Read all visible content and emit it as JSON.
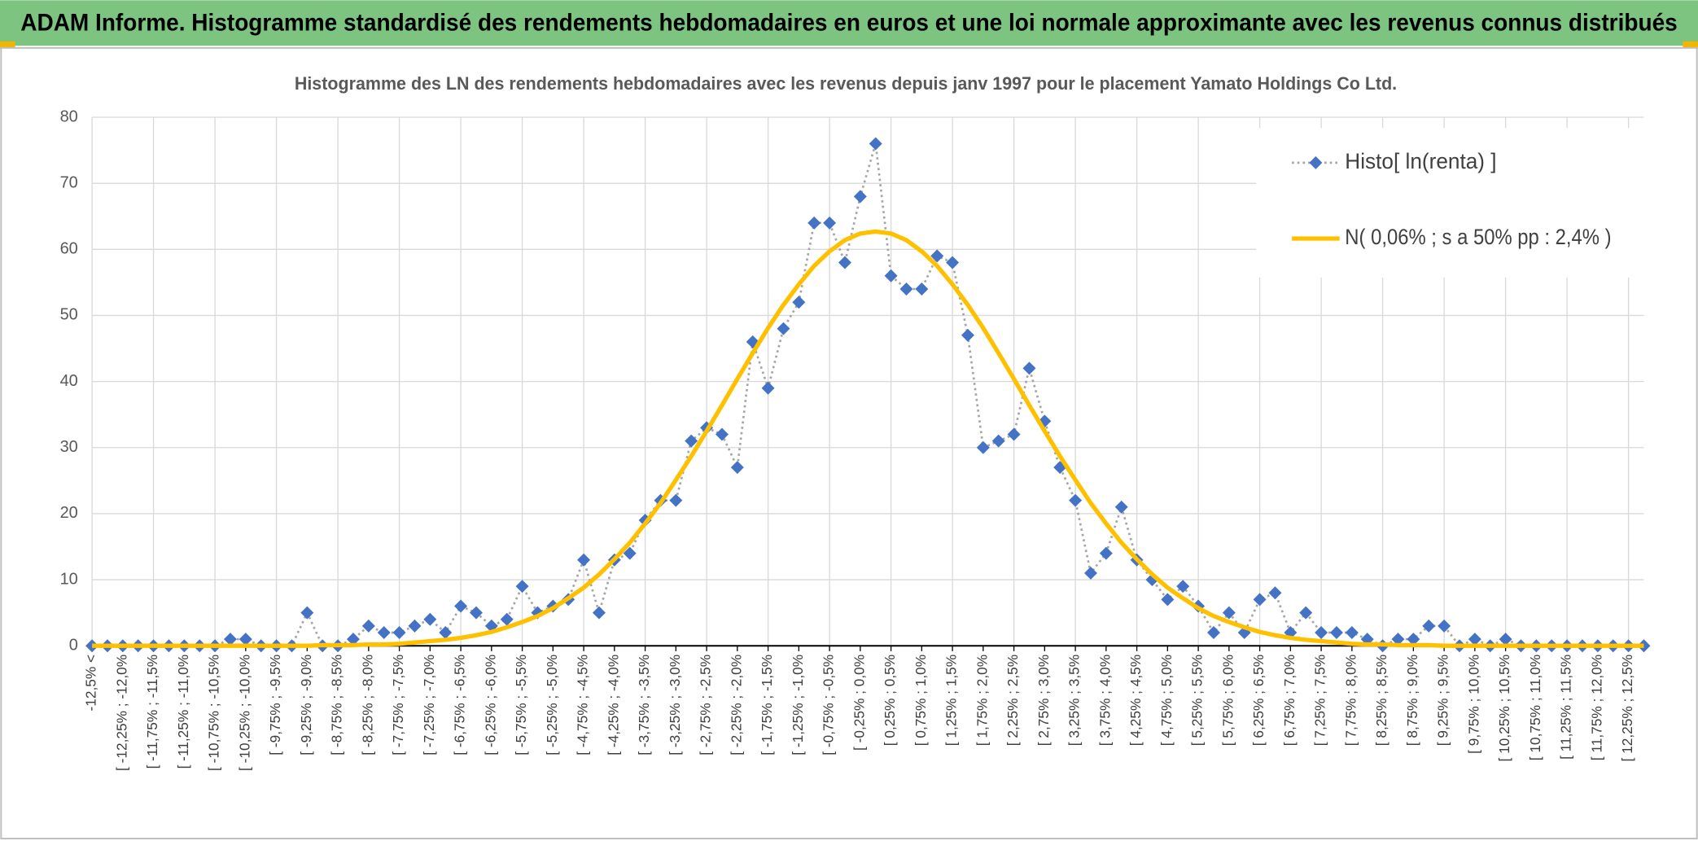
{
  "header": {
    "title": "ADAM Informe. Histogramme standardisé des rendements hebdomadaires en euros et une loi normale approximante avec les revenus connus distribués"
  },
  "chart_data": {
    "type": "line",
    "title": "Histogramme des LN des rendements hebdomadaires avec les revenus depuis janv 1997 pour le placement Yamato Holdings Co Ltd.",
    "categories": [
      "-12,5% <",
      null,
      "[ -12,25% ; -12,0%",
      null,
      "[ -11,75% ; -11,5%",
      null,
      "[ -11,25% ; -11,0%",
      null,
      "[ -10,75% ; -10,5%",
      null,
      "[ -10,25% ; -10,0%",
      null,
      "[ -9,75% ; -9,5%",
      null,
      "[ -9,25% ; -9,0%",
      null,
      "[ -8,75% ; -8,5%",
      null,
      "[ -8,25% ; -8,0%",
      null,
      "[ -7,75% ; -7,5%",
      null,
      "[ -7,25% ; -7,0%",
      null,
      "[ -6,75% ; -6,5%",
      null,
      "[ -6,25% ; -6,0%",
      null,
      "[ -5,75% ; -5,5%",
      null,
      "[ -5,25% ; -5,0%",
      null,
      "[ -4,75% ; -4,5%",
      null,
      "[ -4,25% ; -4,0%",
      null,
      "[ -3,75% ; -3,5%",
      null,
      "[ -3,25% ; -3,0%",
      null,
      "[ -2,75% ; -2,5%",
      null,
      "[ -2,25% ; -2,0%",
      null,
      "[ -1,75% ; -1,5%",
      null,
      "[ -1,25% ; -1,0%",
      null,
      "[ -0,75% ; -0,5%",
      null,
      "[ -0,25% ; 0,0%",
      null,
      "[ 0,25% ; 0,5%",
      null,
      "[ 0,75% ; 1,0%",
      null,
      "[ 1,25% ; 1,5%",
      null,
      "[ 1,75% ; 2,0%",
      null,
      "[ 2,25% ; 2,5%",
      null,
      "[ 2,75% ; 3,0%",
      null,
      "[ 3,25% ; 3,5%",
      null,
      "[ 3,75% ; 4,0%",
      null,
      "[ 4,25% ; 4,5%",
      null,
      "[ 4,75% ; 5,0%",
      null,
      "[ 5,25% ; 5,5%",
      null,
      "[ 5,75% ; 6,0%",
      null,
      "[ 6,25% ; 6,5%",
      null,
      "[ 6,75% ; 7,0%",
      null,
      "[ 7,25% ; 7,5%",
      null,
      "[ 7,75% ; 8,0%",
      null,
      "[ 8,25% ; 8,5%",
      null,
      "[ 8,75% ; 9,0%",
      null,
      "[ 9,25% ; 9,5%",
      null,
      "[ 9,75% ; 10,0%",
      null,
      "[ 10,25% ; 10,5%",
      null,
      "[ 10,75% ; 11,0%",
      null,
      "[ 11,25% ; 11,5%",
      null,
      "[ 11,75% ; 12,0%",
      null,
      "[ 12,25% ; 12,5%",
      null
    ],
    "series": [
      {
        "name": "Histo[ ln(renta) ]",
        "color": "#4472c4",
        "line_color": "#a5a5a5",
        "marker": "diamond",
        "line_style": "dotted",
        "values": [
          0,
          0,
          0,
          0,
          0,
          0,
          0,
          0,
          0,
          1,
          1,
          0,
          0,
          0,
          5,
          0,
          0,
          1,
          3,
          2,
          2,
          3,
          4,
          2,
          6,
          5,
          3,
          4,
          9,
          5,
          6,
          7,
          13,
          5,
          13,
          14,
          19,
          22,
          22,
          31,
          33,
          32,
          27,
          46,
          39,
          48,
          52,
          64,
          64,
          58,
          68,
          76,
          56,
          54,
          54,
          59,
          58,
          47,
          30,
          31,
          32,
          42,
          34,
          27,
          22,
          11,
          14,
          21,
          13,
          10,
          7,
          9,
          6,
          2,
          5,
          2,
          7,
          8,
          2,
          5,
          2,
          2,
          2,
          1,
          0,
          1,
          1,
          3,
          3,
          0,
          1,
          0,
          1,
          0,
          0,
          0,
          0,
          0,
          0,
          0,
          0,
          0
        ]
      },
      {
        "name": "N( 0,06% ; s a 50% pp : 2,4% )",
        "color": "#ffc000",
        "line_style": "solid",
        "values": [
          0,
          0,
          0,
          0,
          0,
          0,
          0,
          0,
          0,
          0,
          0,
          0,
          0,
          0,
          0,
          0.1,
          0.1,
          0.1,
          0.2,
          0.2,
          0.3,
          0.5,
          0.7,
          0.9,
          1.2,
          1.6,
          2.1,
          2.8,
          3.6,
          4.5,
          5.7,
          7.2,
          8.8,
          10.8,
          13.1,
          15.6,
          18.5,
          21.6,
          25.1,
          28.7,
          32.5,
          36.4,
          40.4,
          44.3,
          48.1,
          51.6,
          54.7,
          57.5,
          59.7,
          61.4,
          62.4,
          62.7,
          62.4,
          61.4,
          59.7,
          57.5,
          54.7,
          51.6,
          48.1,
          44.3,
          40.4,
          36.4,
          32.5,
          28.7,
          25.1,
          21.6,
          18.5,
          15.6,
          13.1,
          10.8,
          8.8,
          7.2,
          5.7,
          4.5,
          3.6,
          2.8,
          2.1,
          1.6,
          1.2,
          0.9,
          0.7,
          0.5,
          0.3,
          0.2,
          0.2,
          0.1,
          0.1,
          0.1,
          0,
          0,
          0,
          0,
          0,
          0,
          0,
          0,
          0,
          0,
          0,
          0,
          0,
          0
        ]
      }
    ],
    "ylim": [
      0,
      80
    ],
    "yticks": [
      0,
      10,
      20,
      30,
      40,
      50,
      60,
      70,
      80
    ],
    "grid": true,
    "legend": "upper right"
  }
}
